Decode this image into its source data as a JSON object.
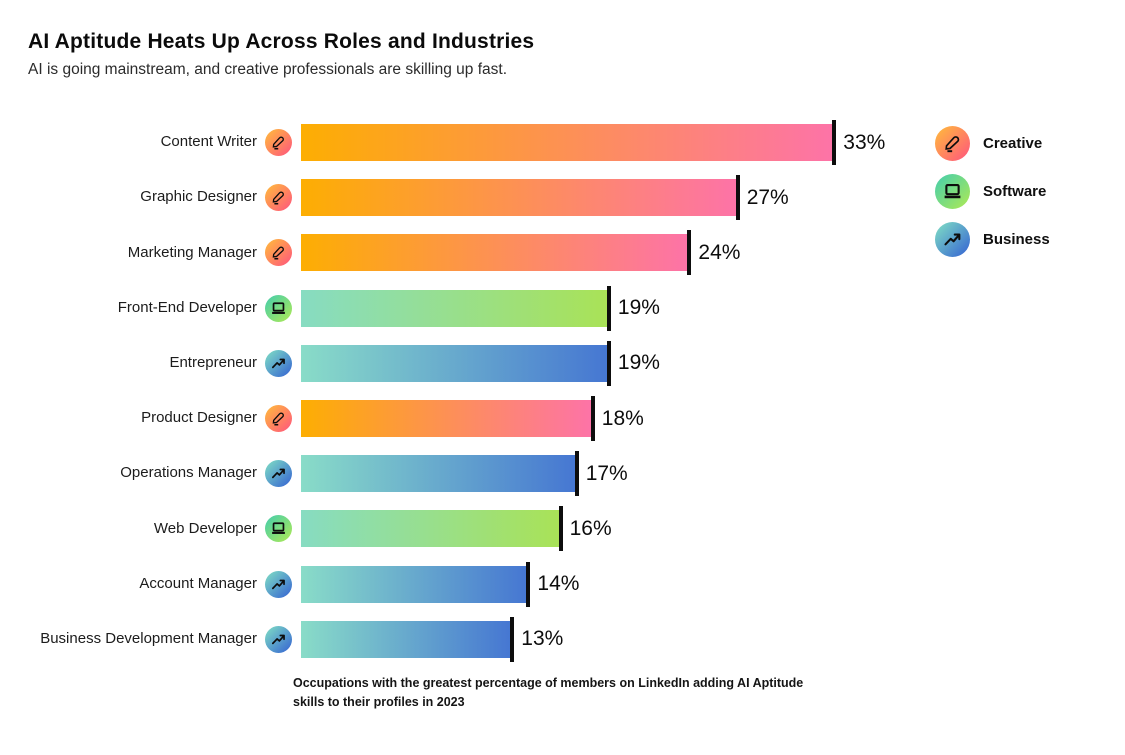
{
  "header": {
    "title": "AI Aptitude Heats Up Across Roles and Industries",
    "subtitle": "AI is going mainstream, and creative professionals are skilling up fast."
  },
  "chart_data": {
    "type": "bar",
    "orientation": "horizontal",
    "title": "AI Aptitude Heats Up Across Roles and Industries",
    "subtitle": "AI is going mainstream, and creative professionals are skilling up fast.",
    "unit": "%",
    "xlim": [
      0,
      35
    ],
    "grid": false,
    "legend_position": "top-right",
    "categories": [
      "Content Writer",
      "Graphic Designer",
      "Marketing Manager",
      "Front-End Developer",
      "Entrepreneur",
      "Product Designer",
      "Operations Manager",
      "Web Developer",
      "Account Manager",
      "Business Development Manager"
    ],
    "values": [
      33,
      27,
      24,
      19,
      19,
      18,
      17,
      16,
      14,
      13
    ],
    "value_labels": [
      "33%",
      "27%",
      "24%",
      "19%",
      "19%",
      "18%",
      "17%",
      "16%",
      "14%",
      "13%"
    ],
    "groups": [
      "creative",
      "creative",
      "creative",
      "software",
      "business",
      "creative",
      "business",
      "software",
      "business",
      "business"
    ],
    "caption": "Occupations with the greatest percentage of members on LinkedIn adding AI Aptitude skills to their profiles in 2023"
  },
  "legend": {
    "items": [
      {
        "label": "Creative",
        "group": "creative",
        "icon": "pen-icon"
      },
      {
        "label": "Software",
        "group": "software",
        "icon": "laptop-icon"
      },
      {
        "label": "Business",
        "group": "business",
        "icon": "trend-up-icon"
      }
    ]
  },
  "colors": {
    "creative_bar_start": "#fdae02",
    "creative_bar_end": "#fd73a7",
    "software_bar_start": "#87dcc2",
    "software_bar_end": "#a9e257",
    "business_bar_start": "#89dcc8",
    "business_bar_end": "#4677d2",
    "creative_icon_start": "#ffb341",
    "creative_icon_end": "#ff5e78",
    "software_icon_start": "#4ed0a5",
    "software_icon_end": "#a5e75c",
    "business_icon_start": "#79d4c6",
    "business_icon_end": "#3b6ed1",
    "tick": "#0d0d0d",
    "text": "#111111"
  }
}
